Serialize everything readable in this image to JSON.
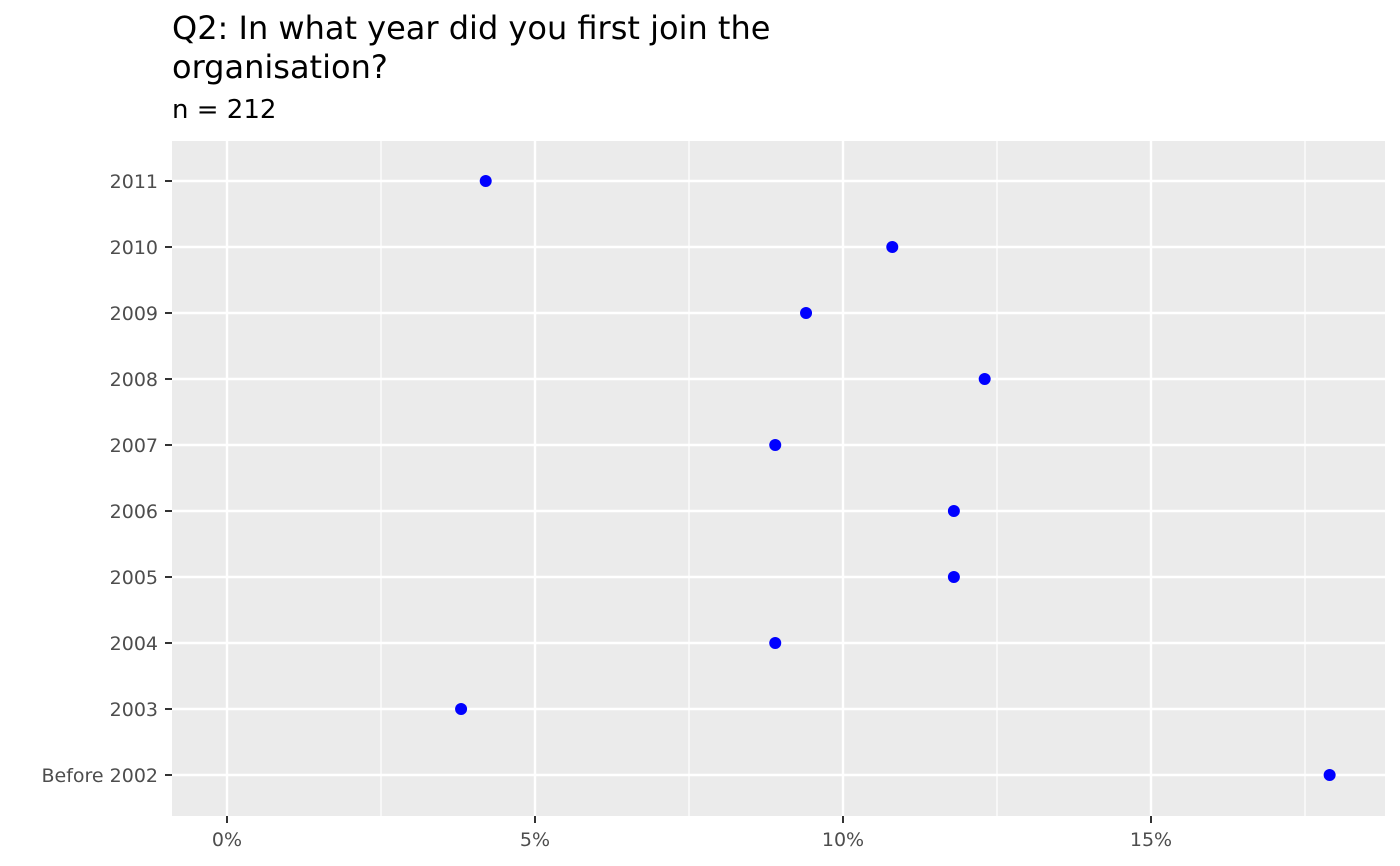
{
  "chart_data": {
    "type": "scatter",
    "title_lines": [
      "Q2: In what year did you first join the",
      "organisation?"
    ],
    "subtitle": "n = 212",
    "xlabel": "",
    "ylabel": "",
    "x_ticks": [
      {
        "value": 0,
        "label": "0%"
      },
      {
        "value": 5,
        "label": "5%"
      },
      {
        "value": 10,
        "label": "10%"
      },
      {
        "value": 15,
        "label": "15%"
      }
    ],
    "x_minor": [
      2.5,
      7.5,
      12.5,
      17.5
    ],
    "xlim": [
      -0.9,
      18.8
    ],
    "x_unit": "percent",
    "categories": [
      "2011",
      "2010",
      "2009",
      "2008",
      "2007",
      "2006",
      "2005",
      "2004",
      "2003",
      "Before 2002"
    ],
    "values": [
      4.2,
      10.8,
      9.4,
      12.3,
      8.9,
      11.8,
      11.8,
      8.9,
      3.8,
      17.9
    ],
    "point_color": "#0000ff",
    "panel_background": "#ebebeb",
    "grid": true
  }
}
